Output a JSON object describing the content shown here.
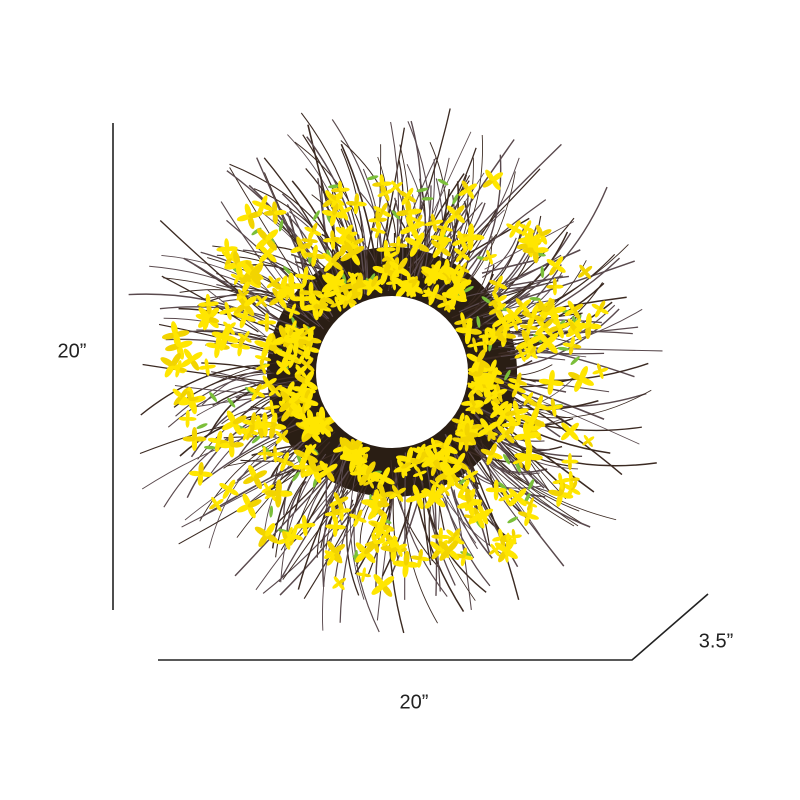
{
  "dimensions": {
    "height": "20”",
    "width": "20”",
    "depth": "3.5”"
  }
}
